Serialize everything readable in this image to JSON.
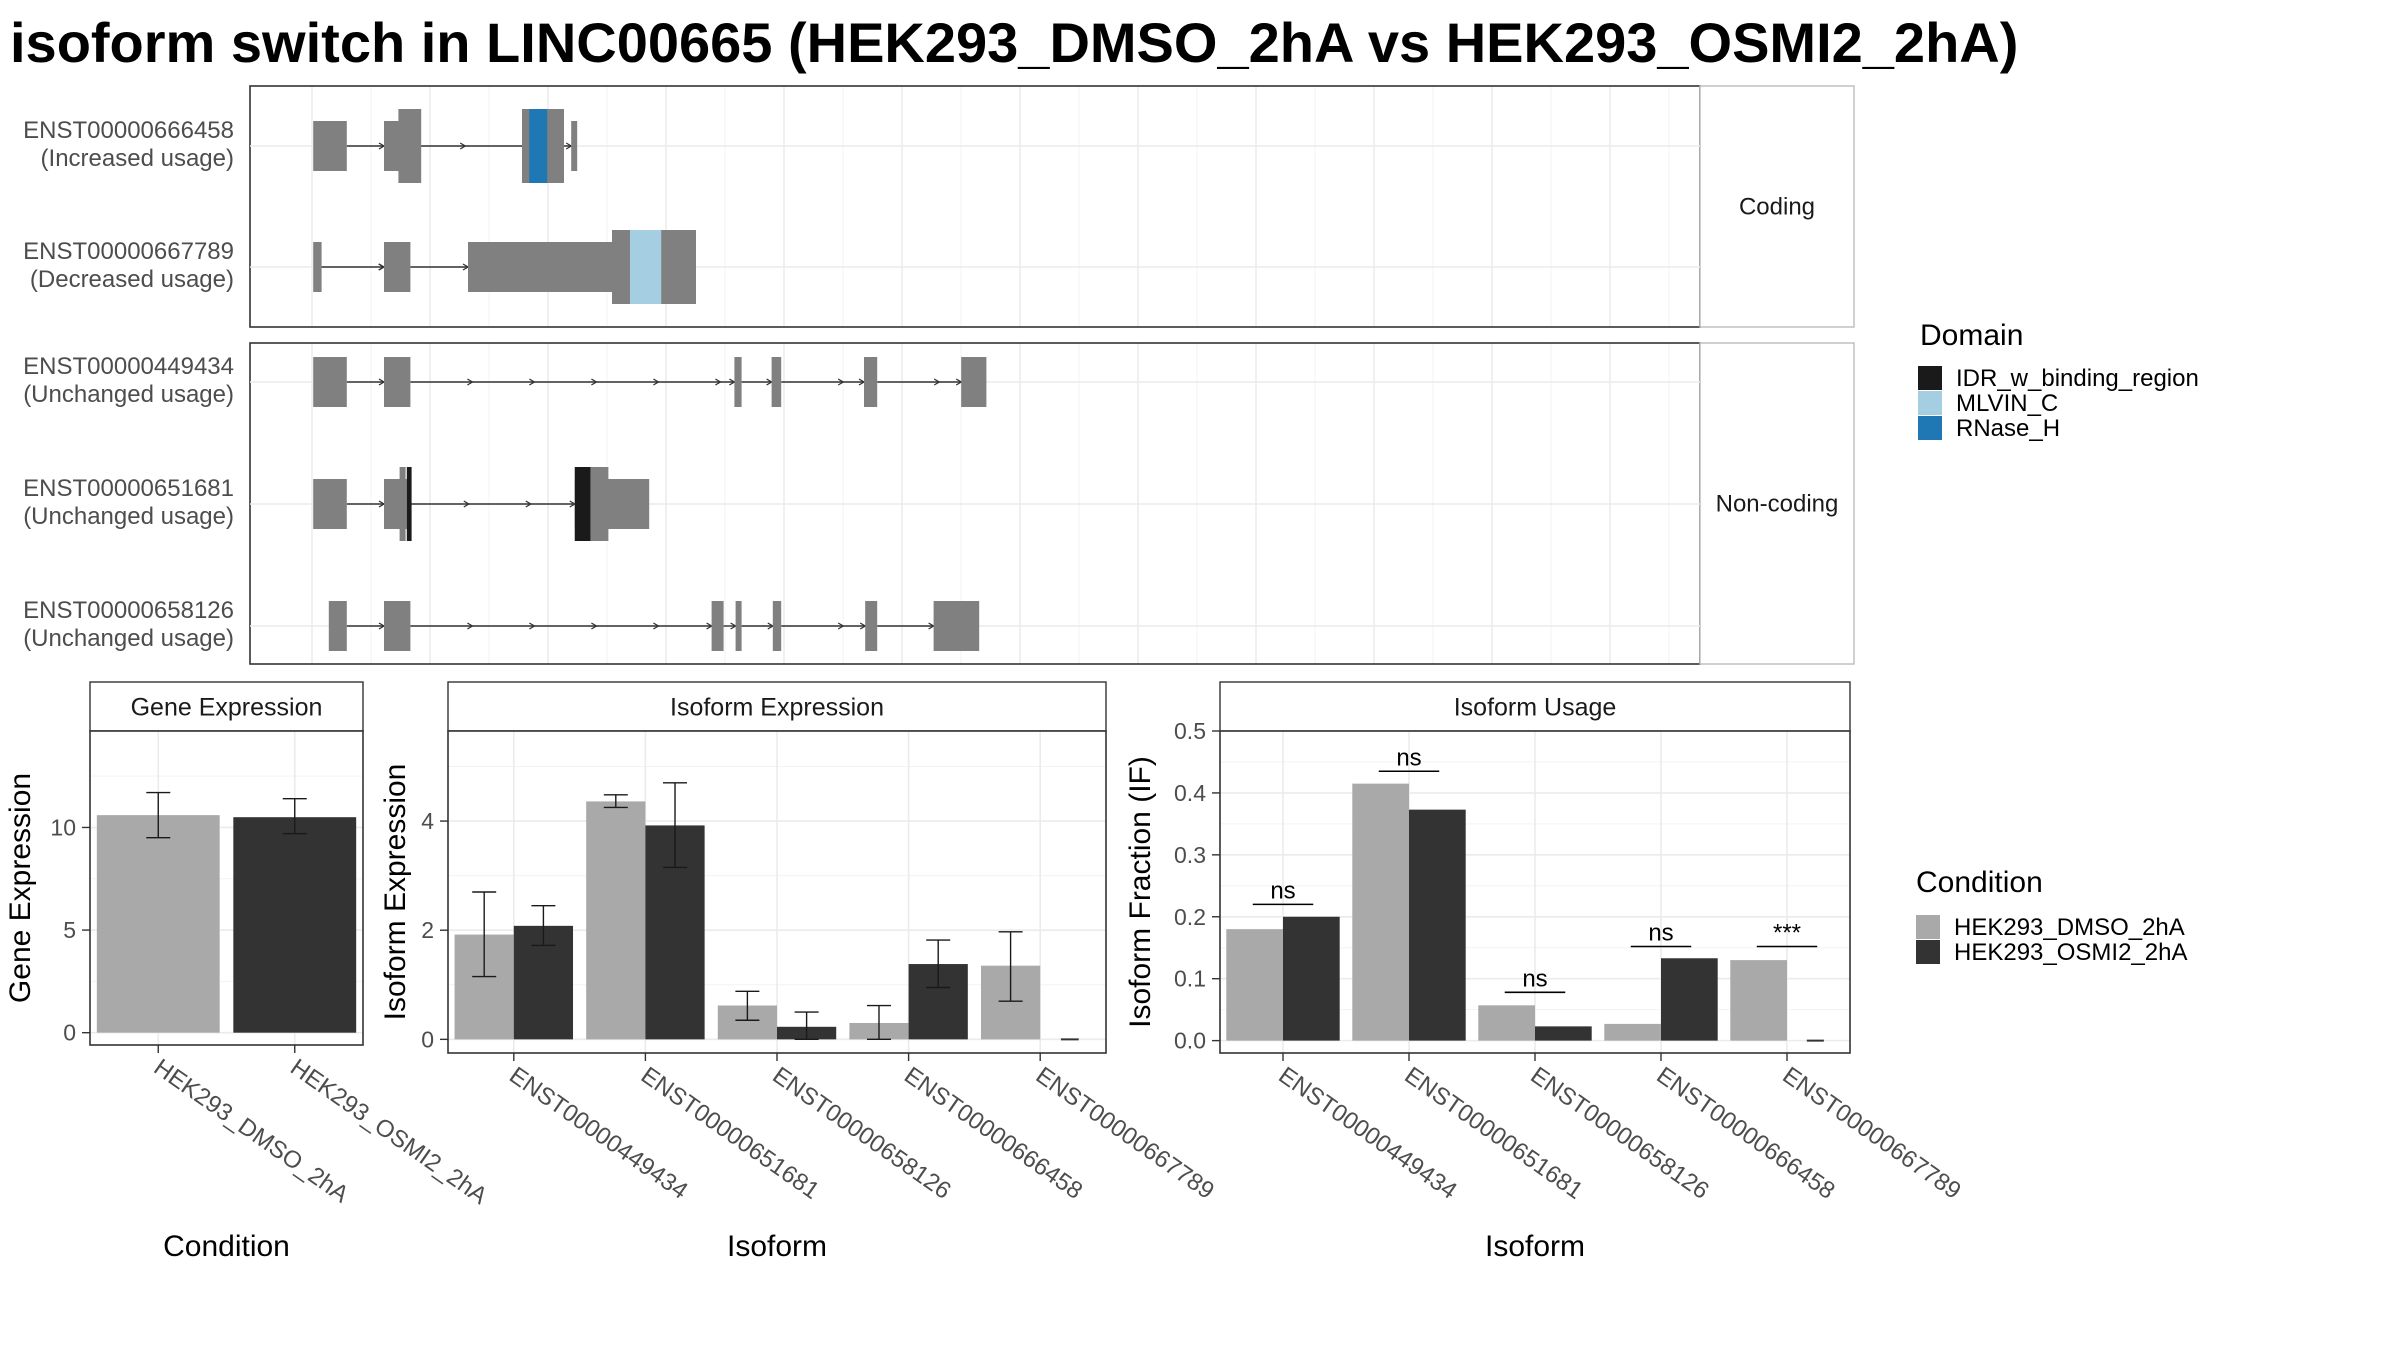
{
  "title": "isoform switch in LINC00665 (HEK293_DMSO_2hA vs HEK293_OSMI2_2hA)",
  "colors": {
    "dmso": "#a9a9a9",
    "osmi": "#333333",
    "exon": "#808080",
    "IDR_w_binding_region": "#1a1a1a",
    "MLVIN_C": "#a6cee3",
    "RNase_H": "#1f78b4"
  },
  "chart_data": [
    {
      "type": "transcript-structure",
      "facets": [
        "Coding",
        "Non-coding"
      ],
      "transcripts": [
        {
          "id": "ENST00000666458",
          "usage": "(Increased usage)",
          "facet": "Coding",
          "exons": [
            [
              1,
              29
            ],
            [
              60,
              76
            ],
            [
              186,
              196
            ],
            [
              221,
              216
            ]
          ],
          "cds": [
            [
              72,
              91
            ],
            [
              175,
              210
            ]
          ],
          "domains": [
            {
              "name": "RNase_H",
              "range": [
                181,
                196
              ]
            }
          ]
        },
        {
          "id": "ENST00000667789",
          "usage": "(Decreased usage)",
          "facet": "Coding",
          "exons": [
            [
              1,
              8
            ],
            [
              60,
              82
            ],
            [
              130,
              318
            ]
          ],
          "cds": [
            [
              250,
              320
            ]
          ],
          "domains": [
            {
              "name": "MLVIN_C",
              "range": [
                265,
                291
              ]
            }
          ]
        },
        {
          "id": "ENST00000449434",
          "usage": "(Unchanged usage)",
          "facet": "Non-coding",
          "exons": [
            [
              1,
              29
            ],
            [
              60,
              82
            ],
            [
              352,
              358
            ],
            [
              383,
              391
            ],
            [
              460,
              471
            ],
            [
              541,
              562
            ]
          ],
          "cds": [],
          "domains": []
        },
        {
          "id": "ENST00000651681",
          "usage": "(Unchanged usage)",
          "facet": "Non-coding",
          "exons": [
            [
              1,
              29
            ],
            [
              60,
              79
            ],
            [
              219,
              281
            ]
          ],
          "cds": [
            [
              73,
              78
            ],
            [
              219,
              247
            ]
          ],
          "domains": [
            {
              "name": "IDR_w_binding_region",
              "range": [
                79,
                83
              ]
            },
            {
              "name": "IDR_w_binding_region",
              "range": [
                219,
                232
              ]
            }
          ]
        },
        {
          "id": "ENST00000658126",
          "usage": "(Unchanged usage)",
          "facet": "Non-coding",
          "exons": [
            [
              14,
              29
            ],
            [
              60,
              82
            ],
            [
              333,
              343
            ],
            [
              353,
              358
            ],
            [
              384,
              391
            ],
            [
              461,
              471
            ],
            [
              518,
              556
            ]
          ],
          "cds": [],
          "domains": []
        }
      ]
    },
    {
      "type": "bar",
      "title": "Gene Expression",
      "xlabel": "Condition",
      "ylabel": "Gene Expression",
      "categories": [
        "HEK293_DMSO_2hA",
        "HEK293_OSMI2_2hA"
      ],
      "values": [
        10.6,
        10.5
      ],
      "errors": [
        [
          9.5,
          11.7
        ],
        [
          9.7,
          11.4
        ]
      ],
      "yticks": [
        0,
        5,
        10
      ],
      "ylim": [
        -0.6,
        14.7
      ]
    },
    {
      "type": "bar",
      "title": "Isoform Expression",
      "xlabel": "Isoform",
      "ylabel": "Isoform Expression",
      "categories": [
        "ENST00000449434",
        "ENST00000651681",
        "ENST00000658126",
        "ENST00000666458",
        "ENST00000667789"
      ],
      "series": [
        {
          "name": "HEK293_DMSO_2hA",
          "values": [
            1.92,
            4.36,
            0.62,
            0.3,
            1.35
          ],
          "errors": [
            [
              1.15,
              2.7
            ],
            [
              4.25,
              4.48
            ],
            [
              0.35,
              0.88
            ],
            [
              0.0,
              0.62
            ],
            [
              0.7,
              1.97
            ]
          ]
        },
        {
          "name": "HEK293_OSMI2_2hA",
          "values": [
            2.08,
            3.92,
            0.23,
            1.38,
            0.0
          ],
          "errors": [
            [
              1.72,
              2.45
            ],
            [
              3.15,
              4.7
            ],
            [
              0.0,
              0.5
            ],
            [
              0.95,
              1.82
            ],
            [
              0.0,
              0.0
            ]
          ]
        }
      ],
      "yticks": [
        0,
        2,
        4
      ],
      "ylim": [
        -0.25,
        5.65
      ]
    },
    {
      "type": "bar",
      "title": "Isoform Usage",
      "xlabel": "Isoform",
      "ylabel": "Isoform Fraction (IF)",
      "categories": [
        "ENST00000449434",
        "ENST00000651681",
        "ENST00000658126",
        "ENST00000666458",
        "ENST00000667789"
      ],
      "series": [
        {
          "name": "HEK293_DMSO_2hA",
          "values": [
            0.18,
            0.415,
            0.057,
            0.027,
            0.13
          ]
        },
        {
          "name": "HEK293_OSMI2_2hA",
          "values": [
            0.2,
            0.373,
            0.023,
            0.133,
            0.0
          ]
        }
      ],
      "significance": [
        "ns",
        "ns",
        "ns",
        "ns",
        "***"
      ],
      "sig_y": [
        0.22,
        0.435,
        0.078,
        0.152,
        0.152
      ],
      "yticks": [
        0.0,
        0.1,
        0.2,
        0.3,
        0.4,
        0.5
      ],
      "yticklabels": [
        "0.0",
        "0.1",
        "0.2",
        "0.3",
        "0.4",
        "0.5"
      ],
      "ylim": [
        -0.02,
        0.5
      ]
    }
  ],
  "legends": {
    "domain": {
      "title": "Domain",
      "items": [
        "IDR_w_binding_region",
        "MLVIN_C",
        "RNase_H"
      ]
    },
    "condition": {
      "title": "Condition",
      "items": [
        "HEK293_DMSO_2hA",
        "HEK293_OSMI2_2hA"
      ]
    }
  }
}
